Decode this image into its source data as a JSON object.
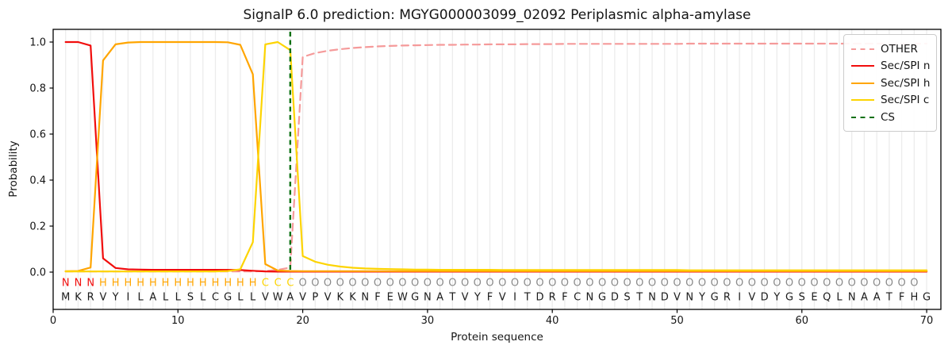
{
  "chart_data": {
    "type": "line",
    "title": "SignalP 6.0 prediction: MGYG000003099_02092 Periplasmic alpha-amylase",
    "xlabel": "Protein sequence",
    "ylabel": "Probability",
    "xlim": [
      0,
      71.14
    ],
    "ylim": [
      -0.162,
      1.055
    ],
    "grid": "vertical-per-residue",
    "legend_position": "upper right",
    "xticks": {
      "values": [
        0,
        10,
        20,
        30,
        40,
        50,
        60,
        70
      ],
      "labels": [
        "0",
        "10",
        "20",
        "30",
        "40",
        "50",
        "60",
        "70"
      ]
    },
    "yticks": {
      "values": [
        0,
        0.2,
        0.4,
        0.6,
        0.8,
        1.0
      ],
      "labels": [
        "0.0",
        "0.2",
        "0.4",
        "0.6",
        "0.8",
        "1.0"
      ]
    },
    "x": [
      1,
      2,
      3,
      4,
      5,
      6,
      7,
      8,
      9,
      10,
      11,
      12,
      13,
      14,
      15,
      16,
      17,
      18,
      19,
      20,
      21,
      22,
      23,
      24,
      25,
      26,
      27,
      28,
      29,
      30,
      31,
      32,
      33,
      34,
      35,
      36,
      37,
      38,
      39,
      40,
      41,
      42,
      43,
      44,
      45,
      46,
      47,
      48,
      49,
      50,
      51,
      52,
      53,
      54,
      55,
      56,
      57,
      58,
      59,
      60,
      61,
      62,
      63,
      64,
      65,
      66,
      67,
      68,
      69,
      70
    ],
    "series": [
      {
        "name": "OTHER",
        "color": "#f59a9a",
        "style": "dashed",
        "values": [
          0.003,
          0.003,
          0.003,
          0.003,
          0.003,
          0.003,
          0.003,
          0.003,
          0.003,
          0.003,
          0.003,
          0.003,
          0.003,
          0.003,
          0.003,
          0.003,
          0.005,
          0.01,
          0.02,
          0.935,
          0.952,
          0.962,
          0.969,
          0.974,
          0.978,
          0.981,
          0.983,
          0.985,
          0.986,
          0.987,
          0.988,
          0.988,
          0.989,
          0.989,
          0.99,
          0.99,
          0.99,
          0.991,
          0.991,
          0.991,
          0.992,
          0.992,
          0.992,
          0.992,
          0.992,
          0.992,
          0.992,
          0.992,
          0.992,
          0.992,
          0.993,
          0.993,
          0.993,
          0.993,
          0.993,
          0.993,
          0.993,
          0.993,
          0.993,
          0.993,
          0.993,
          0.993,
          0.993,
          0.993,
          0.993,
          0.993,
          0.993,
          0.993,
          0.993,
          0.993
        ]
      },
      {
        "name": "Sec/SPI n",
        "color": "#f10d0c",
        "style": "solid",
        "values": [
          1.0,
          1.0,
          0.985,
          0.06,
          0.018,
          0.012,
          0.011,
          0.01,
          0.01,
          0.01,
          0.01,
          0.01,
          0.01,
          0.01,
          0.009,
          0.006,
          0.003,
          0.002,
          0.002,
          0.002,
          0.002,
          0.002,
          0.002,
          0.002,
          0.002,
          0.002,
          0.002,
          0.002,
          0.002,
          0.002,
          0.002,
          0.002,
          0.002,
          0.002,
          0.002,
          0.002,
          0.002,
          0.002,
          0.002,
          0.002,
          0.002,
          0.002,
          0.002,
          0.002,
          0.002,
          0.002,
          0.002,
          0.002,
          0.002,
          0.002,
          0.002,
          0.002,
          0.002,
          0.002,
          0.002,
          0.002,
          0.002,
          0.002,
          0.002,
          0.002,
          0.002,
          0.002,
          0.002,
          0.002,
          0.002,
          0.002,
          0.002,
          0.002,
          0.002,
          0.002
        ]
      },
      {
        "name": "Sec/SPI h",
        "color": "#ffa500",
        "style": "solid",
        "values": [
          0.004,
          0.005,
          0.02,
          0.92,
          0.99,
          0.998,
          1.0,
          1.0,
          1.0,
          1.0,
          1.0,
          1.0,
          1.0,
          0.999,
          0.988,
          0.86,
          0.035,
          0.007,
          0.005,
          0.004,
          0.004,
          0.004,
          0.004,
          0.004,
          0.004,
          0.004,
          0.004,
          0.004,
          0.004,
          0.004,
          0.004,
          0.004,
          0.004,
          0.004,
          0.004,
          0.004,
          0.004,
          0.004,
          0.004,
          0.004,
          0.004,
          0.004,
          0.004,
          0.004,
          0.004,
          0.004,
          0.004,
          0.004,
          0.004,
          0.004,
          0.004,
          0.004,
          0.004,
          0.004,
          0.004,
          0.004,
          0.004,
          0.004,
          0.004,
          0.004,
          0.004,
          0.004,
          0.004,
          0.004,
          0.004,
          0.004,
          0.004,
          0.004,
          0.004,
          0.004
        ]
      },
      {
        "name": "Sec/SPI c",
        "color": "#fdd401",
        "style": "solid",
        "values": [
          0.003,
          0.003,
          0.003,
          0.003,
          0.003,
          0.003,
          0.003,
          0.003,
          0.003,
          0.003,
          0.003,
          0.003,
          0.003,
          0.005,
          0.012,
          0.13,
          0.99,
          1.0,
          0.965,
          0.07,
          0.045,
          0.032,
          0.024,
          0.019,
          0.016,
          0.014,
          0.013,
          0.012,
          0.011,
          0.011,
          0.01,
          0.01,
          0.01,
          0.01,
          0.01,
          0.009,
          0.009,
          0.009,
          0.009,
          0.009,
          0.009,
          0.009,
          0.009,
          0.009,
          0.009,
          0.009,
          0.009,
          0.009,
          0.009,
          0.009,
          0.008,
          0.008,
          0.008,
          0.008,
          0.008,
          0.008,
          0.008,
          0.008,
          0.008,
          0.008,
          0.008,
          0.008,
          0.008,
          0.008,
          0.008,
          0.008,
          0.008,
          0.008,
          0.008,
          0.008
        ]
      }
    ],
    "cs": {
      "label": "CS",
      "x": 19,
      "color": "#077010",
      "style": "dashed-vertical"
    },
    "residues": "MKRVYILALLSLCGLLVWAVPVKKNFEWGNATVYFVITDRFCNGDSTNDVNYGRIVDYGSEQLNAATFHG",
    "region_labels": "NNNHHHHHHHHHHHHHCCCOOOOOOOOOOOOOOOOOOOOOOOOOOOOOOOOOOOOOOOOOOOOOOOOOO",
    "region_colors": {
      "N": "#f10d0c",
      "H": "#ffa500",
      "C": "#fdd401",
      "O": "#8a8a8a"
    },
    "residue_color": "#1a1a1a",
    "grid_color": "#ececec",
    "spine_color": "#000000"
  }
}
